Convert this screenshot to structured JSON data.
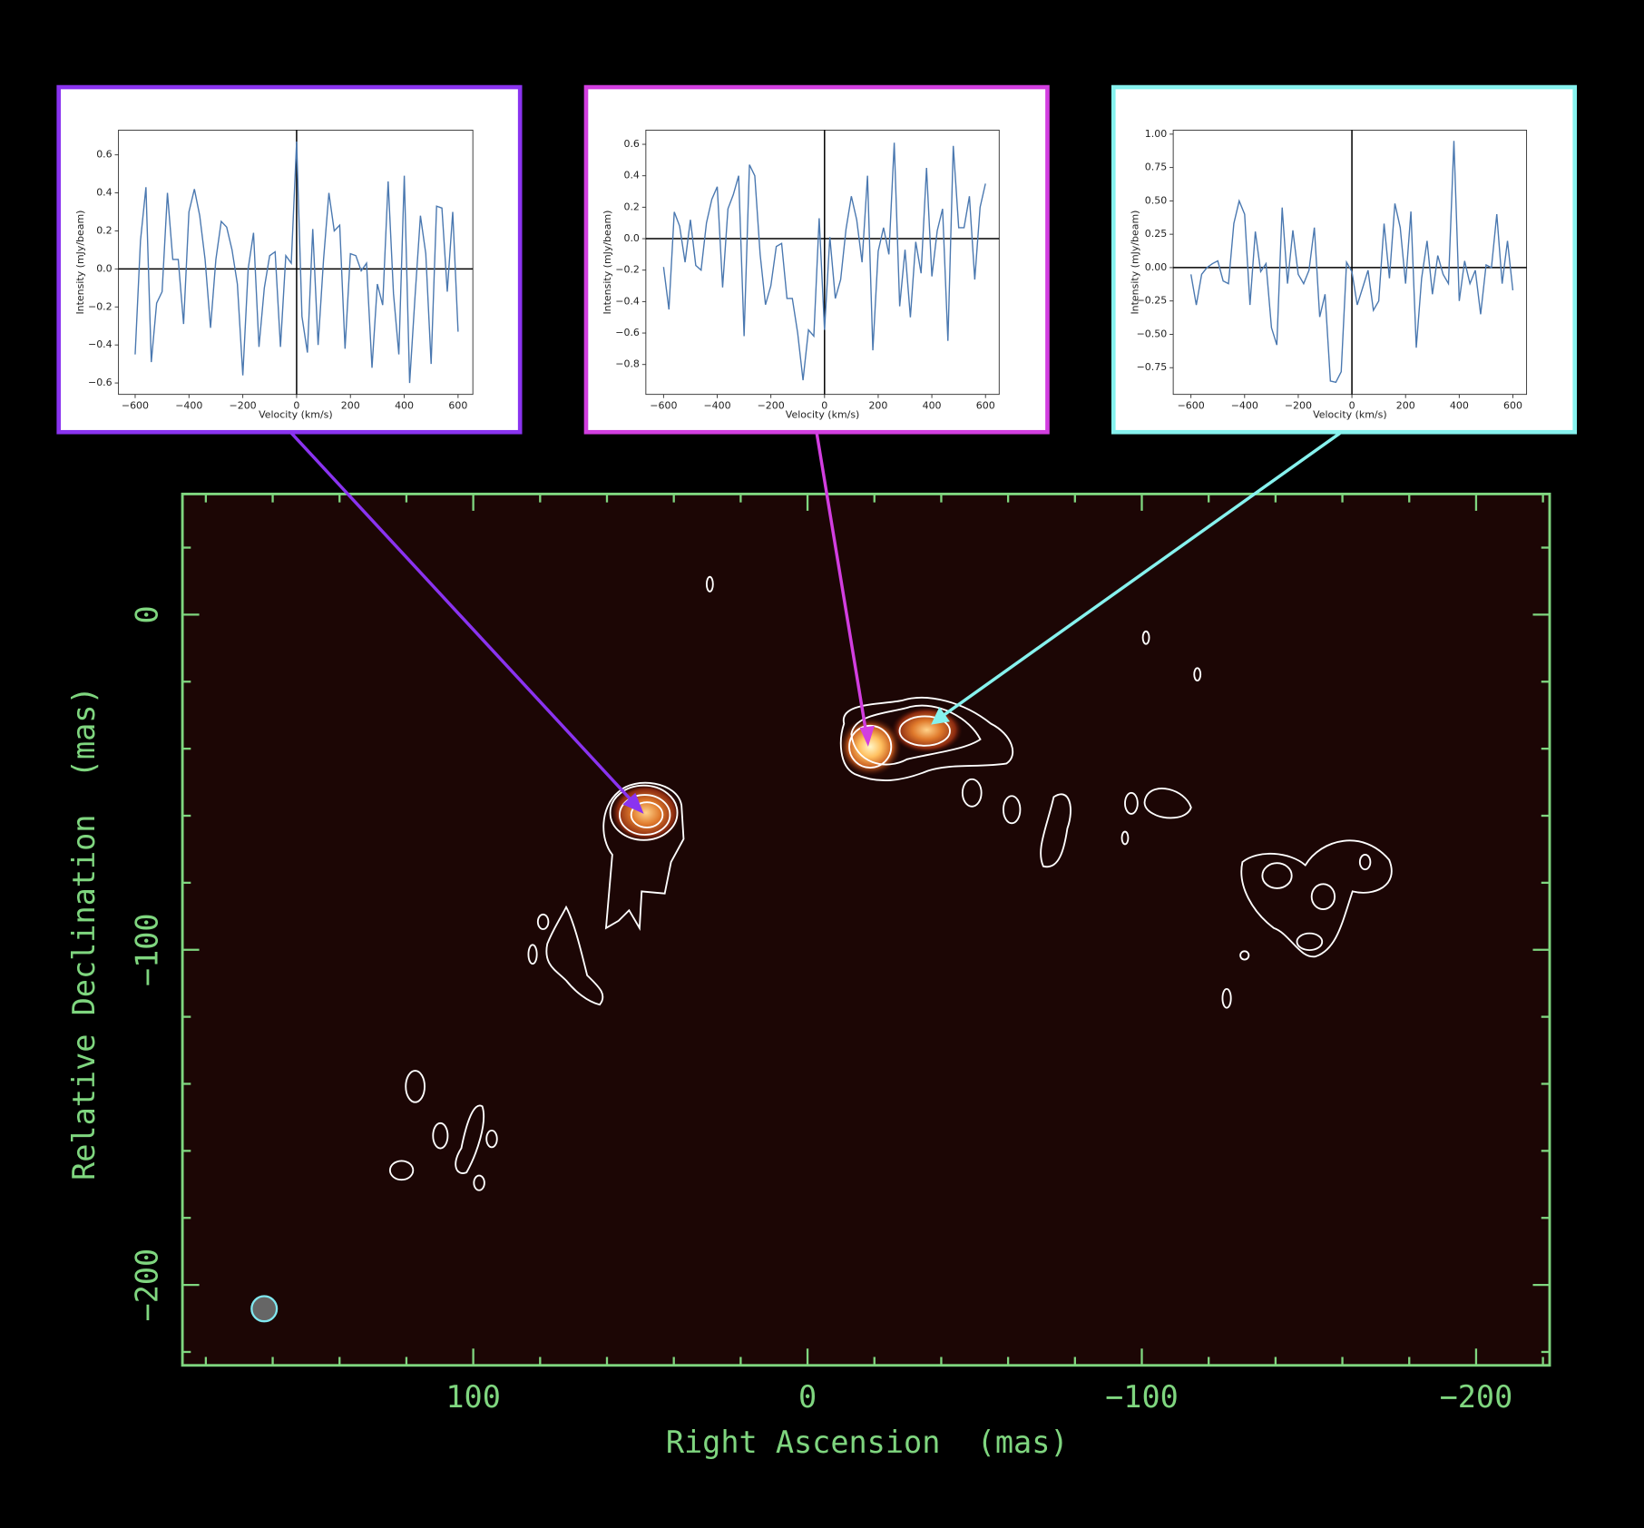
{
  "chart_data": [
    {
      "type": "line",
      "xlabel": "Velocity (km/s)",
      "ylabel": "Intensity (mJy/beam)",
      "color": "#4a78b0",
      "border": "#8a33f0",
      "x": [
        -600,
        -580,
        -560,
        -540,
        -520,
        -500,
        -480,
        -460,
        -440,
        -420,
        -400,
        -380,
        -360,
        -340,
        -320,
        -300,
        -280,
        -260,
        -240,
        -220,
        -200,
        -180,
        -160,
        -140,
        -120,
        -100,
        -80,
        -60,
        -40,
        -20,
        0,
        20,
        40,
        60,
        80,
        100,
        120,
        140,
        160,
        180,
        200,
        220,
        240,
        260,
        280,
        300,
        320,
        340,
        360,
        380,
        400,
        420,
        440,
        460,
        480,
        500,
        520,
        540,
        560,
        580,
        600
      ],
      "values": [
        -0.45,
        0.15,
        0.43,
        -0.49,
        -0.18,
        -0.12,
        0.4,
        0.05,
        0.05,
        -0.29,
        0.3,
        0.42,
        0.28,
        0.05,
        -0.31,
        0.05,
        0.25,
        0.22,
        0.1,
        -0.08,
        -0.56,
        0.0,
        0.19,
        -0.41,
        -0.1,
        0.07,
        0.09,
        -0.41,
        0.07,
        0.03,
        0.67,
        -0.25,
        -0.44,
        0.21,
        -0.4,
        0.05,
        0.4,
        0.2,
        0.23,
        -0.42,
        0.08,
        0.07,
        -0.01,
        0.03,
        -0.52,
        -0.08,
        -0.19,
        0.46,
        -0.13,
        -0.45,
        0.49,
        -0.6,
        -0.15,
        0.28,
        0.08,
        -0.5,
        0.33,
        0.32,
        -0.12,
        0.3,
        -0.33
      ],
      "xlim": [
        -662,
        655
      ],
      "ylim": [
        -0.66,
        0.73
      ],
      "vline": 0,
      "hline": 0,
      "xticks": [
        {
          "value": -600,
          "label": "−600"
        },
        {
          "value": -400,
          "label": "−400"
        },
        {
          "value": -200,
          "label": "−200"
        },
        0,
        200,
        400,
        600
      ],
      "yticks": [
        {
          "value": 0.6,
          "label": "0.6"
        },
        {
          "value": 0.4,
          "label": "0.4"
        },
        {
          "value": 0.2,
          "label": "0.2"
        },
        {
          "value": 0,
          "label": "0.0"
        },
        {
          "value": -0.2,
          "label": "−0.2"
        },
        {
          "value": -0.4,
          "label": "−0.4"
        },
        {
          "value": -0.6,
          "label": "−0.6"
        }
      ]
    },
    {
      "type": "line",
      "xlabel": "Velocity (km/s)",
      "ylabel": "Intensity (mJy/beam)",
      "color": "#4a78b0",
      "border": "#d23ee0",
      "x": [
        -600,
        -580,
        -560,
        -540,
        -520,
        -500,
        -480,
        -460,
        -440,
        -420,
        -400,
        -380,
        -360,
        -340,
        -320,
        -300,
        -280,
        -260,
        -240,
        -220,
        -200,
        -180,
        -160,
        -140,
        -120,
        -100,
        -80,
        -60,
        -40,
        -20,
        0,
        20,
        40,
        60,
        80,
        100,
        120,
        140,
        160,
        180,
        200,
        220,
        240,
        260,
        280,
        300,
        320,
        340,
        360,
        380,
        400,
        420,
        440,
        460,
        480,
        500,
        520,
        540,
        560,
        580,
        600
      ],
      "values": [
        -0.18,
        -0.45,
        0.17,
        0.08,
        -0.15,
        0.12,
        -0.17,
        -0.2,
        0.1,
        0.25,
        0.33,
        -0.31,
        0.19,
        0.28,
        0.4,
        -0.62,
        0.47,
        0.4,
        -0.1,
        -0.42,
        -0.3,
        -0.05,
        -0.03,
        -0.38,
        -0.38,
        -0.6,
        -0.9,
        -0.58,
        -0.62,
        0.13,
        -0.58,
        0.01,
        -0.38,
        -0.26,
        0.06,
        0.27,
        0.12,
        -0.15,
        0.4,
        -0.71,
        -0.08,
        0.07,
        -0.1,
        0.61,
        -0.43,
        -0.07,
        -0.5,
        -0.02,
        -0.22,
        0.45,
        -0.24,
        0.05,
        0.19,
        -0.65,
        0.59,
        0.07,
        0.07,
        0.27,
        -0.26,
        0.2,
        0.35
      ],
      "xlim": [
        -666,
        651
      ],
      "ylim": [
        -0.99,
        0.69
      ],
      "vline": 0,
      "hline": 0,
      "xticks": [
        {
          "value": -600,
          "label": "−600"
        },
        {
          "value": -400,
          "label": "−400"
        },
        {
          "value": -200,
          "label": "−200"
        },
        0,
        200,
        400,
        600
      ],
      "yticks": [
        {
          "value": 0.6,
          "label": "0.6"
        },
        {
          "value": 0.4,
          "label": "0.4"
        },
        {
          "value": 0.2,
          "label": "0.2"
        },
        {
          "value": 0,
          "label": "0.0"
        },
        {
          "value": -0.2,
          "label": "−0.2"
        },
        {
          "value": -0.4,
          "label": "−0.4"
        },
        {
          "value": -0.6,
          "label": "−0.6"
        },
        {
          "value": -0.8,
          "label": "−0.8"
        }
      ]
    },
    {
      "type": "line",
      "xlabel": "Velocity (km/s)",
      "ylabel": "Intensity (mJy/beam)",
      "color": "#4a78b0",
      "border": "#86f2ee",
      "x": [
        -600,
        -580,
        -560,
        -540,
        -520,
        -500,
        -480,
        -460,
        -440,
        -420,
        -400,
        -380,
        -360,
        -340,
        -320,
        -300,
        -280,
        -260,
        -240,
        -220,
        -200,
        -180,
        -160,
        -140,
        -120,
        -100,
        -80,
        -60,
        -40,
        -20,
        0,
        20,
        40,
        60,
        80,
        100,
        120,
        140,
        160,
        180,
        200,
        220,
        240,
        260,
        280,
        300,
        320,
        340,
        360,
        380,
        400,
        420,
        440,
        460,
        480,
        500,
        520,
        540,
        560,
        580,
        600
      ],
      "values": [
        -0.05,
        -0.28,
        -0.05,
        0.0,
        0.03,
        0.05,
        -0.1,
        -0.12,
        0.33,
        0.5,
        0.4,
        -0.28,
        0.27,
        -0.03,
        0.03,
        -0.45,
        -0.58,
        0.45,
        -0.12,
        0.28,
        -0.05,
        -0.12,
        -0.02,
        0.3,
        -0.37,
        -0.2,
        -0.85,
        -0.86,
        -0.78,
        0.04,
        -0.03,
        -0.28,
        -0.15,
        -0.02,
        -0.32,
        -0.25,
        0.33,
        -0.08,
        0.48,
        0.3,
        -0.12,
        0.42,
        -0.6,
        -0.08,
        0.2,
        -0.2,
        0.09,
        -0.05,
        -0.12,
        0.95,
        -0.25,
        0.05,
        -0.12,
        -0.02,
        -0.35,
        0.02,
        0.0,
        0.4,
        -0.12,
        0.2,
        -0.17
      ],
      "xlim": [
        -666,
        651
      ],
      "ylim": [
        -0.95,
        1.03
      ],
      "vline": 0,
      "hline": 0,
      "xticks": [
        {
          "value": -600,
          "label": "−600"
        },
        {
          "value": -400,
          "label": "−400"
        },
        {
          "value": -200,
          "label": "−200"
        },
        0,
        200,
        400,
        600
      ],
      "yticks": [
        {
          "value": 1,
          "label": "1.00"
        },
        {
          "value": 0.75,
          "label": "0.75"
        },
        {
          "value": 0.5,
          "label": "0.50"
        },
        {
          "value": 0.25,
          "label": "0.25"
        },
        {
          "value": 0,
          "label": "0.00"
        },
        {
          "value": -0.25,
          "label": "−0.25"
        },
        {
          "value": -0.5,
          "label": "−0.50"
        },
        {
          "value": -0.75,
          "label": "−0.75"
        }
      ]
    },
    {
      "type": "image",
      "xlabel": "Right Ascension  (mas)",
      "ylabel": "Relative Declination  (mas)",
      "color": "#7fd67f",
      "xlim": [
        187,
        -222
      ],
      "ylim": [
        -224,
        36
      ],
      "xticks": [
        100,
        0,
        {
          "value": -100,
          "label": "−100"
        },
        {
          "value": -200,
          "label": "−200"
        }
      ],
      "yticks": [
        0,
        {
          "value": -100,
          "label": "−100"
        },
        {
          "value": -200,
          "label": "−200"
        }
      ],
      "xminor": [
        180,
        160,
        140,
        120,
        80,
        60,
        40,
        20,
        -20,
        -40,
        -60,
        -80,
        -120,
        -140,
        -160,
        -180,
        -220
      ],
      "yminor": [
        20,
        -20,
        -40,
        -60,
        -80,
        -120,
        -140,
        -160,
        -180,
        -220
      ]
    }
  ]
}
